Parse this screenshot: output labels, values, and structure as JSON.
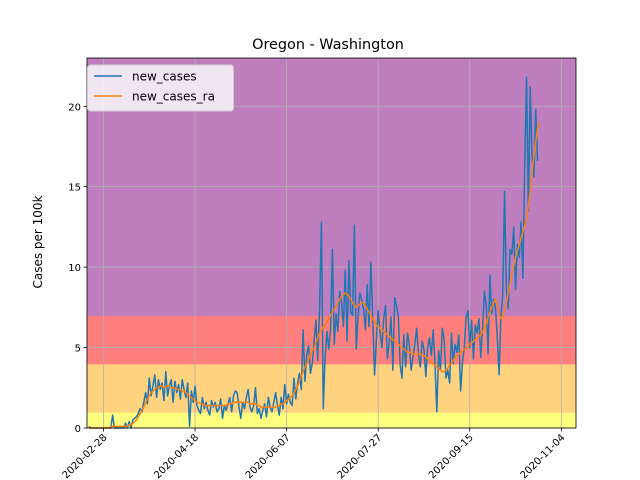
{
  "chart_data": {
    "type": "line",
    "title": "Oregon - Washington",
    "xlabel": "",
    "ylabel": "Cases per 100k",
    "x_start": "2020-02-20",
    "x_end": "2020-11-12",
    "xlim": [
      "2020-02-19",
      "2020-11-12"
    ],
    "ylim": [
      0,
      23
    ],
    "yticks": [
      0,
      5,
      10,
      15,
      20
    ],
    "xticks": [
      "2020-02-28",
      "2020-04-18",
      "2020-06-07",
      "2020-07-27",
      "2020-09-15",
      "2020-11-04"
    ],
    "grid": true,
    "legend": "top-left",
    "risk_bands": [
      {
        "from": 0,
        "to": 1,
        "color": "#ffff7f"
      },
      {
        "from": 1,
        "to": 4,
        "color": "#ffd27f"
      },
      {
        "from": 4,
        "to": 7,
        "color": "#ff7f7f"
      },
      {
        "from": 7,
        "to": 23,
        "color": "#bf7fbf"
      }
    ],
    "series": [
      {
        "name": "new_cases",
        "color": "#1f77b4",
        "values": [
          0.1,
          0.0,
          0.0,
          0.0,
          0.0,
          0.0,
          0.0,
          0.0,
          0.0,
          0.0,
          0.0,
          0.0,
          0.0,
          0.8,
          0.0,
          0.0,
          0.0,
          0.0,
          0.0,
          0.0,
          0.3,
          0.0,
          0.4,
          0.0,
          0.5,
          0.6,
          0.7,
          0.9,
          1.2,
          1.0,
          1.6,
          2.2,
          1.5,
          3.1,
          2.0,
          2.6,
          3.3,
          1.9,
          3.0,
          2.4,
          2.8,
          1.7,
          3.5,
          2.0,
          2.6,
          3.0,
          1.6,
          2.9,
          2.2,
          2.7,
          1.8,
          3.0,
          2.4,
          1.9,
          2.8,
          0.1,
          2.3,
          1.6,
          2.6,
          1.4,
          1.1,
          0.9,
          1.9,
          1.2,
          1.6,
          1.1,
          0.8,
          1.7,
          1.3,
          1.6,
          1.0,
          1.2,
          1.8,
          0.6,
          1.4,
          1.1,
          1.5,
          1.9,
          1.0,
          2.0,
          2.3,
          2.2,
          1.3,
          0.6,
          1.6,
          1.2,
          1.9,
          2.4,
          1.3,
          1.0,
          1.4,
          2.5,
          0.9,
          1.2,
          0.6,
          1.1,
          1.5,
          0.7,
          1.9,
          1.3,
          1.0,
          1.6,
          2.2,
          1.4,
          0.8,
          1.9,
          1.2,
          2.7,
          1.5,
          2.1,
          1.6,
          1.4,
          3.1,
          1.8,
          2.8,
          3.4,
          2.4,
          6.1,
          2.9,
          4.6,
          5.1,
          3.4,
          4.0,
          5.4,
          6.7,
          4.2,
          7.5,
          12.8,
          1.2,
          4.4,
          6.0,
          4.9,
          6.2,
          11.1,
          5.2,
          7.1,
          6.0,
          8.5,
          7.8,
          6.3,
          9.8,
          5.4,
          10.4,
          7.2,
          7.0,
          12.6,
          4.9,
          6.9,
          8.4,
          8.0,
          7.4,
          6.1,
          8.9,
          6.3,
          10.3,
          6.9,
          3.3,
          5.5,
          7.3,
          6.0,
          5.0,
          6.8,
          7.6,
          4.3,
          5.3,
          6.9,
          3.6,
          8.1,
          7.6,
          6.9,
          3.9,
          3.1,
          5.8,
          3.8,
          5.9,
          5.2,
          3.6,
          4.4,
          5.2,
          6.2,
          4.6,
          3.8,
          5.4,
          4.9,
          3.2,
          5.0,
          5.6,
          4.5,
          6.1,
          4.0,
          1.0,
          4.8,
          3.6,
          6.2,
          5.5,
          3.1,
          3.6,
          2.8,
          5.9,
          4.0,
          5.2,
          4.7,
          5.8,
          2.3,
          4.1,
          5.0,
          6.9,
          7.3,
          5.0,
          6.7,
          4.3,
          6.4,
          5.9,
          6.8,
          4.4,
          6.2,
          8.5,
          7.6,
          4.6,
          9.5,
          7.1,
          8.0,
          7.5,
          5.7,
          3.3,
          6.9,
          8.3,
          14.7,
          8.6,
          7.4,
          11.1,
          10.8,
          12.5,
          8.6,
          11.4,
          10.6,
          12.8,
          9.3,
          16.4,
          21.8,
          13.5,
          21.2,
          16.9,
          15.6,
          19.8,
          16.6
        ]
      },
      {
        "name": "new_cases_ra",
        "color": "#ff7f0e",
        "values": [
          0.0,
          0.0,
          0.0,
          0.0,
          0.0,
          0.0,
          0.0,
          0.0,
          0.0,
          0.0,
          0.0,
          0.0,
          0.1,
          0.1,
          0.1,
          0.1,
          0.1,
          0.1,
          0.1,
          0.1,
          0.1,
          0.1,
          0.2,
          0.2,
          0.3,
          0.4,
          0.5,
          0.7,
          0.9,
          1.1,
          1.3,
          1.6,
          1.8,
          2.0,
          2.2,
          2.3,
          2.4,
          2.5,
          2.5,
          2.6,
          2.6,
          2.5,
          2.6,
          2.6,
          2.6,
          2.5,
          2.5,
          2.5,
          2.4,
          2.4,
          2.4,
          2.3,
          2.3,
          2.2,
          2.1,
          2.0,
          1.9,
          1.8,
          1.7,
          1.6,
          1.6,
          1.5,
          1.5,
          1.4,
          1.4,
          1.4,
          1.4,
          1.4,
          1.4,
          1.4,
          1.4,
          1.4,
          1.4,
          1.4,
          1.4,
          1.4,
          1.5,
          1.5,
          1.5,
          1.6,
          1.6,
          1.6,
          1.6,
          1.6,
          1.6,
          1.6,
          1.6,
          1.6,
          1.5,
          1.5,
          1.5,
          1.5,
          1.4,
          1.4,
          1.3,
          1.3,
          1.3,
          1.3,
          1.3,
          1.3,
          1.3,
          1.3,
          1.3,
          1.4,
          1.4,
          1.5,
          1.5,
          1.6,
          1.7,
          1.8,
          1.9,
          2.0,
          2.2,
          2.4,
          2.6,
          2.9,
          3.2,
          3.5,
          3.8,
          4.0,
          4.3,
          4.6,
          4.8,
          5.0,
          5.3,
          5.6,
          5.9,
          6.1,
          6.3,
          6.4,
          6.6,
          6.8,
          7.0,
          7.2,
          7.4,
          7.6,
          7.8,
          8.0,
          8.2,
          8.3,
          8.4,
          8.3,
          8.2,
          8.0,
          7.8,
          7.6,
          7.5,
          7.6,
          7.7,
          7.8,
          7.8,
          7.6,
          7.4,
          7.2,
          7.0,
          6.8,
          6.6,
          6.4,
          6.3,
          6.2,
          6.1,
          6.0,
          5.9,
          5.8,
          5.7,
          5.6,
          5.5,
          5.4,
          5.3,
          5.2,
          5.1,
          5.0,
          4.9,
          4.8,
          4.7,
          4.7,
          4.7,
          4.6,
          4.6,
          4.6,
          4.6,
          4.6,
          4.5,
          4.5,
          4.4,
          4.3,
          4.2,
          4.1,
          4.0,
          3.9,
          3.8,
          3.7,
          3.6,
          3.5,
          3.5,
          3.6,
          3.7,
          3.9,
          4.0,
          4.2,
          4.4,
          4.5,
          4.6,
          4.7,
          4.8,
          4.9,
          5.0,
          5.1,
          5.2,
          5.3,
          5.4,
          5.5,
          5.6,
          5.7,
          5.8,
          6.0,
          6.2,
          6.5,
          6.9,
          7.2,
          7.5,
          7.8,
          8.0,
          7.6,
          7.1,
          6.8,
          6.9,
          7.3,
          7.8,
          8.4,
          9.0,
          9.6,
          10.1,
          10.6,
          11.0,
          11.4,
          11.8,
          12.2,
          12.6,
          13.1,
          13.8,
          14.8,
          15.9,
          16.9,
          17.8,
          18.6,
          19.0
        ]
      }
    ]
  }
}
